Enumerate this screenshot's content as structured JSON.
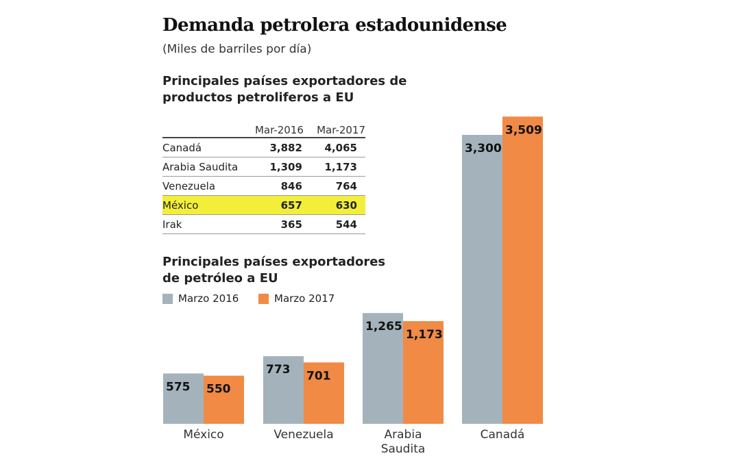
{
  "title": "Demanda petrolera estadounidense",
  "subtitle": "(Miles de barriles por día)",
  "table_section": {
    "title_line1": "Principales países exportadores de",
    "title_line2": "productos petroliferos a EU",
    "columns": [
      "",
      "Mar-2016",
      "Mar-2017"
    ],
    "rows": [
      {
        "country": "Canadá",
        "v2016": "3,882",
        "v2017": "4,065",
        "highlight": false
      },
      {
        "country": "Arabia Saudita",
        "v2016": "1,309",
        "v2017": "1,173",
        "highlight": false
      },
      {
        "country": "Venezuela",
        "v2016": "846",
        "v2017": "764",
        "highlight": false
      },
      {
        "country": "México",
        "v2016": "657",
        "v2017": "630",
        "highlight": true
      },
      {
        "country": "Irak",
        "v2016": "365",
        "v2017": "544",
        "highlight": false
      }
    ],
    "highlight_color": "#f2ee3a"
  },
  "chart_data": {
    "type": "bar",
    "title_line1": "Principales países exportadores",
    "title_line2": "de petróleo a EU",
    "categories": [
      "México",
      "Venezuela",
      "Arabia Saudita",
      "Canadá"
    ],
    "series": [
      {
        "name": "Marzo 2016",
        "color": "#a4b3bb",
        "values": [
          575,
          773,
          1265,
          3300
        ],
        "labels": [
          "575",
          "773",
          "1,265",
          "3,300"
        ]
      },
      {
        "name": "Marzo 2017",
        "color": "#f08a45",
        "values": [
          550,
          701,
          1173,
          3509
        ],
        "labels": [
          "550",
          "701",
          "1,173",
          "3,509"
        ]
      }
    ],
    "legend": "top-left",
    "grid": false
  }
}
